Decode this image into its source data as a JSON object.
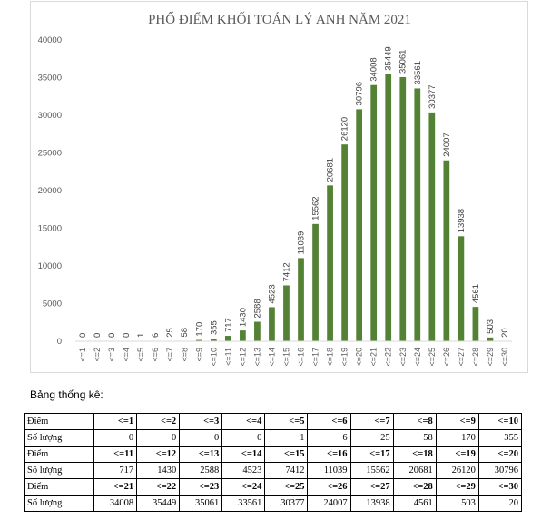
{
  "chart_data": {
    "type": "bar",
    "title": "PHỔ ĐIỂM KHỐI TOÁN LÝ ANH NĂM 2021",
    "categories": [
      "<=1",
      "<=2",
      "<=3",
      "<=4",
      "<=5",
      "<=6",
      "<=7",
      "<=8",
      "<=9",
      "<=10",
      "<=11",
      "<=12",
      "<=13",
      "<=14",
      "<=15",
      "<=16",
      "<=17",
      "<=18",
      "<=19",
      "<=20",
      "<=21",
      "<=22",
      "<=23",
      "<=24",
      "<=25",
      "<=26",
      "<=27",
      "<=28",
      "<=29",
      "<=30"
    ],
    "values": [
      0,
      0,
      0,
      0,
      1,
      6,
      25,
      58,
      170,
      355,
      717,
      1430,
      2588,
      4523,
      7412,
      11039,
      15562,
      20681,
      26120,
      30796,
      34008,
      35449,
      35061,
      33561,
      30377,
      24007,
      13938,
      4561,
      503,
      20
    ],
    "ylim": [
      0,
      40000
    ],
    "yticks": [
      0,
      5000,
      10000,
      15000,
      20000,
      25000,
      30000,
      35000,
      40000
    ],
    "xlabel": "",
    "ylabel": "",
    "grid": false,
    "bar_color": "#548235"
  },
  "section_label": "Bảng thống kê:",
  "table": {
    "rows": [
      {
        "label": "Điểm",
        "cells": [
          "<=1",
          "<=2",
          "<=3",
          "<=4",
          "<=5",
          "<=6",
          "<=7",
          "<=8",
          "<=9",
          "<=10"
        ],
        "bold": true
      },
      {
        "label": "Số lượng",
        "cells": [
          "0",
          "0",
          "0",
          "0",
          "1",
          "6",
          "25",
          "58",
          "170",
          "355"
        ],
        "bold": false
      },
      {
        "label": "Điểm",
        "cells": [
          "<=11",
          "<=12",
          "<=13",
          "<=14",
          "<=15",
          "<=16",
          "<=17",
          "<=18",
          "<=19",
          "<=20"
        ],
        "bold": true
      },
      {
        "label": "Số lượng",
        "cells": [
          "717",
          "1430",
          "2588",
          "4523",
          "7412",
          "11039",
          "15562",
          "20681",
          "26120",
          "30796"
        ],
        "bold": false
      },
      {
        "label": "Điểm",
        "cells": [
          "<=21",
          "<=22",
          "<=23",
          "<=24",
          "<=25",
          "<=26",
          "<=27",
          "<=28",
          "<=29",
          "<=30"
        ],
        "bold": true
      },
      {
        "label": "Số lượng",
        "cells": [
          "34008",
          "35449",
          "35061",
          "33561",
          "30377",
          "24007",
          "13938",
          "4561",
          "503",
          "20"
        ],
        "bold": false
      }
    ]
  }
}
